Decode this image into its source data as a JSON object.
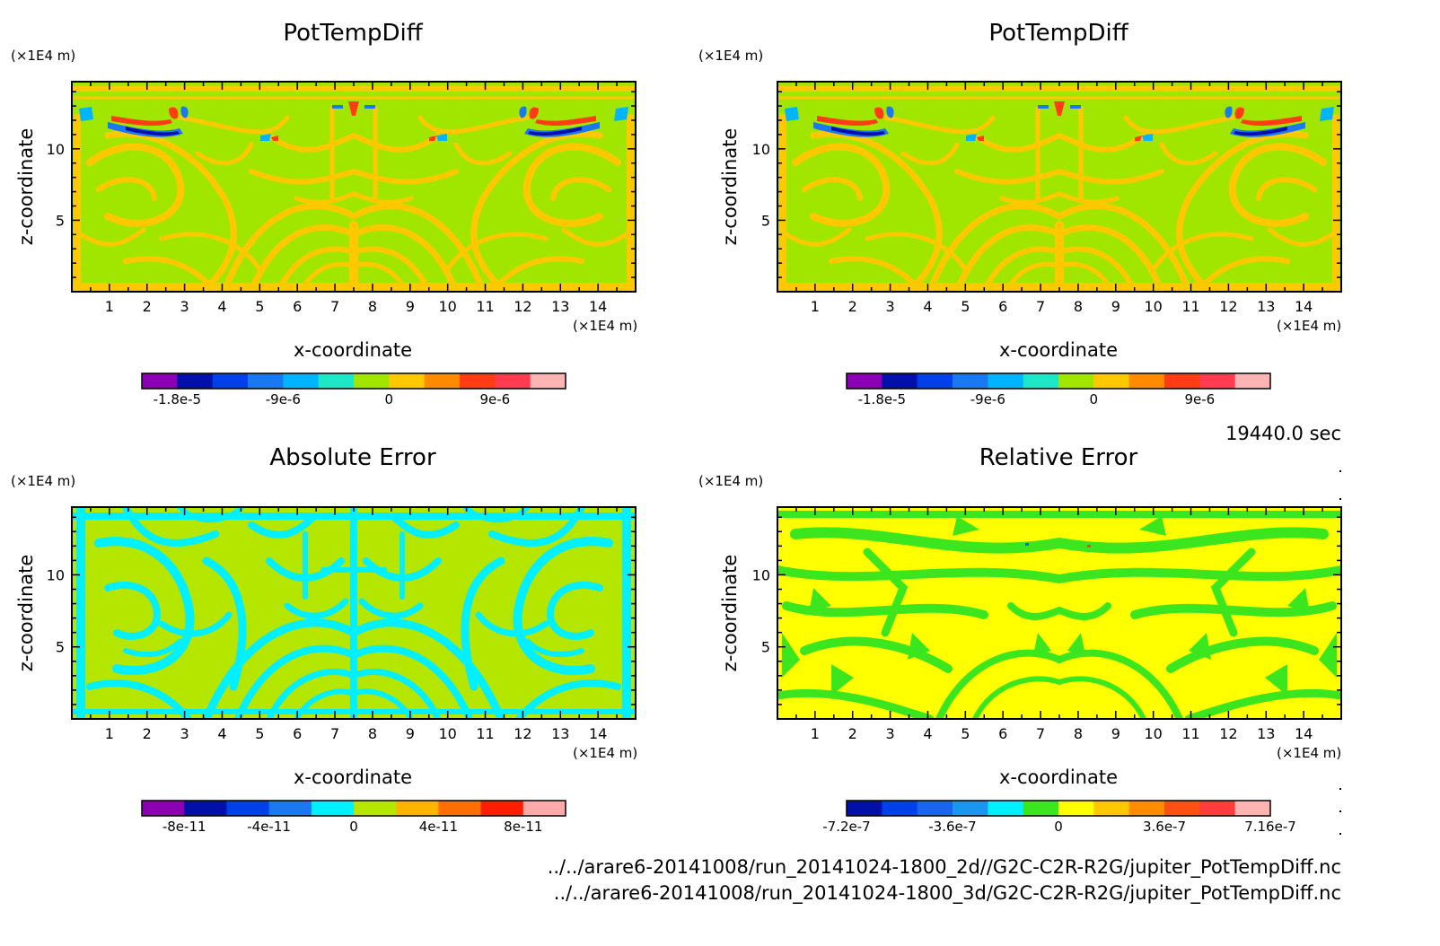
{
  "chart_data": [
    {
      "type": "heatmap",
      "title": "PotTempDiff",
      "xlabel": "x-coordinate",
      "ylabel": "z-coordinate",
      "x_unit": "(×1E4 m)",
      "y_unit": "(×1E4 m)",
      "xlim": [
        0,
        15
      ],
      "ylim": [
        0,
        14.7
      ],
      "x_ticks": [
        "1",
        "2",
        "3",
        "4",
        "5",
        "6",
        "7",
        "8",
        "9",
        "10",
        "11",
        "12",
        "13",
        "14"
      ],
      "y_ticks": [
        "5",
        "10"
      ],
      "colorbar": {
        "colors": [
          "#8c00b4",
          "#0010a8",
          "#0040e8",
          "#1a78f0",
          "#00b4ff",
          "#20e6c8",
          "#a0e600",
          "#ffc800",
          "#ff8c00",
          "#ff3c14",
          "#ff3c50",
          "#ffb4b4"
        ],
        "tick_labels": [
          "-1.8e-5",
          "-9e-6",
          "0",
          "9e-6"
        ],
        "tick_positions": [
          1,
          4,
          7,
          10
        ]
      }
    },
    {
      "type": "heatmap",
      "title": "PotTempDiff",
      "xlabel": "x-coordinate",
      "ylabel": "z-coordinate",
      "x_unit": "(×1E4 m)",
      "y_unit": "(×1E4 m)",
      "xlim": [
        0,
        15
      ],
      "ylim": [
        0,
        14.7
      ],
      "x_ticks": [
        "1",
        "2",
        "3",
        "4",
        "5",
        "6",
        "7",
        "8",
        "9",
        "10",
        "11",
        "12",
        "13",
        "14"
      ],
      "y_ticks": [
        "5",
        "10"
      ],
      "colorbar": {
        "colors": [
          "#8c00b4",
          "#0010a8",
          "#0040e8",
          "#1a78f0",
          "#00b4ff",
          "#20e6c8",
          "#a0e600",
          "#ffc800",
          "#ff8c00",
          "#ff3c14",
          "#ff3c50",
          "#ffb4b4"
        ],
        "tick_labels": [
          "-1.8e-5",
          "-9e-6",
          "0",
          "9e-6"
        ],
        "tick_positions": [
          1,
          4,
          7,
          10
        ]
      }
    },
    {
      "type": "heatmap",
      "title": "Absolute Error",
      "xlabel": "x-coordinate",
      "ylabel": "z-coordinate",
      "x_unit": "(×1E4 m)",
      "y_unit": "(×1E4 m)",
      "xlim": [
        0,
        15
      ],
      "ylim": [
        0,
        14.7
      ],
      "x_ticks": [
        "1",
        "2",
        "3",
        "4",
        "5",
        "6",
        "7",
        "8",
        "9",
        "10",
        "11",
        "12",
        "13",
        "14"
      ],
      "y_ticks": [
        "5",
        "10"
      ],
      "colorbar": {
        "colors": [
          "#8c00b4",
          "#0010a8",
          "#0040e8",
          "#1a78f0",
          "#00f0ff",
          "#b4e600",
          "#ffb400",
          "#ff6e00",
          "#ff1e00",
          "#ffaaaa"
        ],
        "tick_labels": [
          "-8e-11",
          "-4e-11",
          "0",
          "4e-11",
          "8e-11"
        ],
        "tick_positions": [
          1,
          3,
          5,
          7,
          9
        ]
      }
    },
    {
      "type": "heatmap",
      "title": "Relative Error",
      "xlabel": "x-coordinate",
      "ylabel": "z-coordinate",
      "x_unit": "(×1E4 m)",
      "y_unit": "(×1E4 m)",
      "xlim": [
        0,
        15
      ],
      "ylim": [
        0,
        14.7
      ],
      "x_ticks": [
        "1",
        "2",
        "3",
        "4",
        "5",
        "6",
        "7",
        "8",
        "9",
        "10",
        "11",
        "12",
        "13",
        "14"
      ],
      "y_ticks": [
        "5",
        "10"
      ],
      "colorbar": {
        "colors": [
          "#0010a8",
          "#0040e8",
          "#1a64f0",
          "#1a96f0",
          "#00f0ff",
          "#3ce61e",
          "#ffff00",
          "#ffc800",
          "#ff8c00",
          "#ff5014",
          "#ff3c3c",
          "#ffb4b4"
        ],
        "tick_labels": [
          "-7.2e-7",
          "-3.6e-7",
          "0",
          "3.6e-7",
          "7.16e-7"
        ],
        "tick_positions": [
          0,
          3,
          6,
          9,
          12
        ]
      }
    }
  ],
  "annotations": {
    "time_label": "19440.0 sec",
    "file_path_1": "../../arare6-20141008/run_20141024-1800_2d//G2C-C2R-R2G/jupiter_PotTempDiff.nc",
    "file_path_2": "../../arare6-20141008/run_20141024-1800_3d/G2C-C2R-R2G/jupiter_PotTempDiff.nc"
  },
  "field_colors": {
    "pot_base": "#a0e600",
    "pot_band": "#ffc800",
    "pot_red": "#ff3c14",
    "pot_blue": "#1a78f0",
    "pot_cyan": "#00b4ff",
    "pot_dark": "#0010a8",
    "abs_base": "#b4e600",
    "abs_band": "#00f0ff",
    "rel_base": "#ffff00",
    "rel_band": "#3ce61e",
    "rel_dot_blue": "#1a64f0",
    "rel_dot_red": "#ff3c3c"
  }
}
